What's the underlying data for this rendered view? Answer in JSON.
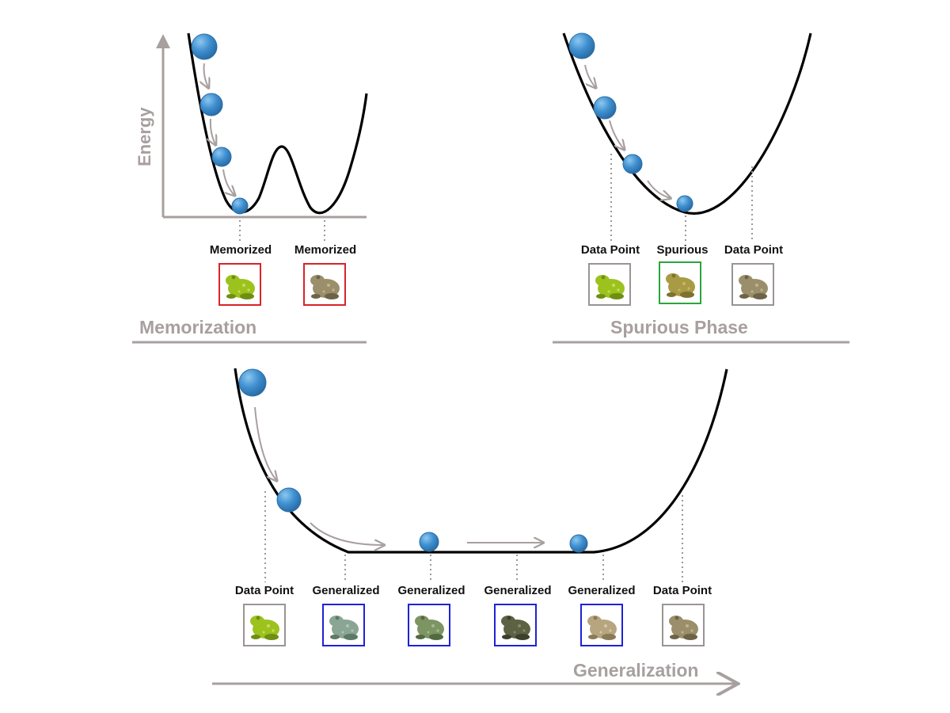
{
  "axis": {
    "energy_label": "Energy"
  },
  "panels": {
    "memorization": {
      "title": "Memorization",
      "labels": [
        "Memorized",
        "Memorized"
      ]
    },
    "spurious": {
      "title": "Spurious Phase",
      "labels": [
        "Data Point",
        "Spurious",
        "Data Point"
      ]
    },
    "generalization": {
      "title": "Generalization",
      "labels": [
        "Data Point",
        "Generalized",
        "Generalized",
        "Generalized",
        "Generalized",
        "Data Point"
      ]
    }
  },
  "colors": {
    "ball": "#3f8fcf",
    "curve": "#000000",
    "axis": "#a89f9f",
    "memorized_border": "#d9232a",
    "spurious_border": "#2aa63c",
    "generalized_border": "#1e22d6",
    "data_point_border": "#9a9494"
  },
  "icons": [
    "ball-icon",
    "frog-image",
    "arrow-icon"
  ]
}
